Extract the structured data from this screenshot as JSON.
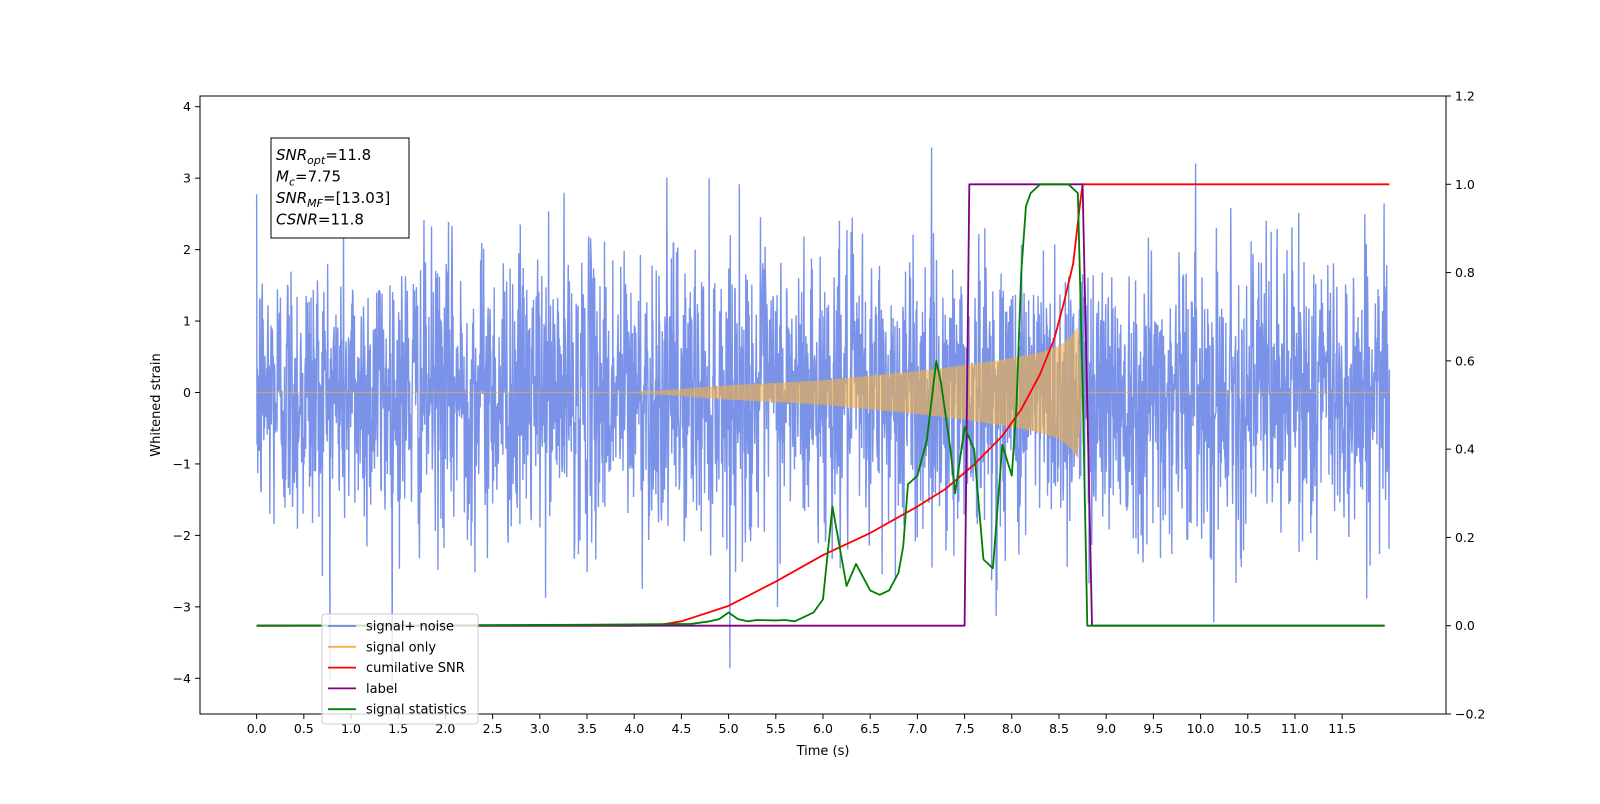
{
  "chart_data": {
    "type": "line",
    "xlabel": "Time (s)",
    "ylabel": "Whitened strain",
    "ylabel_right": "",
    "xlim": [
      -0.6,
      12.6
    ],
    "ylim": [
      -4.5,
      4.15
    ],
    "ylim_right": [
      -0.2,
      1.2
    ],
    "x_ticks": [
      "0.0",
      "0.5",
      "1.0",
      "1.5",
      "2.0",
      "2.5",
      "3.0",
      "3.5",
      "4.0",
      "4.5",
      "5.0",
      "5.5",
      "6.0",
      "6.5",
      "7.0",
      "7.5",
      "8.0",
      "8.5",
      "9.0",
      "9.5",
      "10.0",
      "10.5",
      "11.0",
      "11.5"
    ],
    "y_ticks": [
      "4",
      "3",
      "2",
      "1",
      "0",
      "−1",
      "−2",
      "−3",
      "−4"
    ],
    "y_ticks_right": [
      "1.2",
      "1.0",
      "0.8",
      "0.6",
      "0.4",
      "0.2",
      "0.0",
      "−0.2"
    ],
    "grid": false,
    "legend_position": "lower-left",
    "annotation": {
      "lines": [
        {
          "base": "SNR",
          "sub": "opt",
          "value": "=11.8"
        },
        {
          "base": "M",
          "sub": "c",
          "value": "=7.75"
        },
        {
          "base": "SNR",
          "sub": "MF",
          "value": "=[13.03]"
        },
        {
          "base": "CSNR",
          "sub": "",
          "value": "=11.8"
        }
      ]
    },
    "series": [
      {
        "name": "signal+ noise",
        "color": "#6b87e6",
        "axis": "left",
        "kind": "noise",
        "x_range": [
          0.0,
          12.0
        ],
        "std": 1.0,
        "peak_max": 3.75,
        "peak_min": -4.1
      },
      {
        "name": "signal only",
        "color": "#f5b041",
        "axis": "left",
        "kind": "chirp_envelope",
        "envelope": [
          [
            0.0,
            0.0
          ],
          [
            4.0,
            0.0
          ],
          [
            5.0,
            0.1
          ],
          [
            6.0,
            0.17
          ],
          [
            7.0,
            0.3
          ],
          [
            7.5,
            0.38
          ],
          [
            8.0,
            0.48
          ],
          [
            8.3,
            0.56
          ],
          [
            8.5,
            0.65
          ],
          [
            8.6,
            0.75
          ],
          [
            8.65,
            0.82
          ],
          [
            8.7,
            0.92
          ],
          [
            8.72,
            0.55
          ],
          [
            8.75,
            0.0
          ],
          [
            12.0,
            0.0
          ]
        ]
      },
      {
        "name": "cumilative SNR",
        "color": "#ff0000",
        "axis": "right",
        "x": [
          0.0,
          3.0,
          4.0,
          4.3,
          4.5,
          5.0,
          5.5,
          6.0,
          6.5,
          7.0,
          7.3,
          7.6,
          7.9,
          8.1,
          8.3,
          8.45,
          8.55,
          8.65,
          8.72,
          8.75,
          12.0
        ],
        "y": [
          0.0,
          0.0,
          0.0,
          0.003,
          0.01,
          0.045,
          0.1,
          0.16,
          0.21,
          0.27,
          0.31,
          0.365,
          0.43,
          0.49,
          0.57,
          0.65,
          0.73,
          0.82,
          0.95,
          1.0,
          1.0
        ]
      },
      {
        "name": "label",
        "color": "#800080",
        "axis": "right",
        "x": [
          0.0,
          7.5,
          7.55,
          8.75,
          8.85,
          11.95
        ],
        "y": [
          0.0,
          0.0,
          1.0,
          1.0,
          0.0,
          0.0
        ]
      },
      {
        "name": "signal statistics",
        "color": "#008000",
        "axis": "right",
        "x": [
          0.0,
          3.4,
          4.0,
          4.6,
          4.8,
          4.9,
          5.0,
          5.1,
          5.2,
          5.3,
          5.5,
          5.6,
          5.7,
          5.8,
          5.9,
          6.0,
          6.1,
          6.2,
          6.25,
          6.35,
          6.45,
          6.5,
          6.6,
          6.7,
          6.8,
          6.85,
          6.9,
          7.0,
          7.1,
          7.2,
          7.25,
          7.35,
          7.4,
          7.5,
          7.6,
          7.7,
          7.8,
          7.9,
          8.0,
          8.05,
          8.1,
          8.15,
          8.2,
          8.3,
          8.4,
          8.5,
          8.6,
          8.7,
          8.75,
          8.8,
          11.95
        ],
        "y": [
          0.0,
          0.002,
          0.003,
          0.004,
          0.01,
          0.015,
          0.03,
          0.015,
          0.01,
          0.013,
          0.012,
          0.013,
          0.01,
          0.02,
          0.03,
          0.06,
          0.27,
          0.15,
          0.09,
          0.14,
          0.1,
          0.08,
          0.07,
          0.08,
          0.12,
          0.18,
          0.32,
          0.34,
          0.42,
          0.6,
          0.55,
          0.4,
          0.3,
          0.45,
          0.4,
          0.15,
          0.13,
          0.41,
          0.34,
          0.5,
          0.8,
          0.95,
          0.98,
          1.0,
          1.0,
          1.0,
          1.0,
          0.98,
          0.55,
          0.0,
          0.0
        ]
      }
    ],
    "legend": [
      {
        "label": "signal+ noise",
        "color": "#6b87e6"
      },
      {
        "label": "signal only",
        "color": "#f5b041"
      },
      {
        "label": "cumilative SNR",
        "color": "#ff0000"
      },
      {
        "label": "label",
        "color": "#800080"
      },
      {
        "label": "signal statistics",
        "color": "#008000"
      }
    ]
  }
}
